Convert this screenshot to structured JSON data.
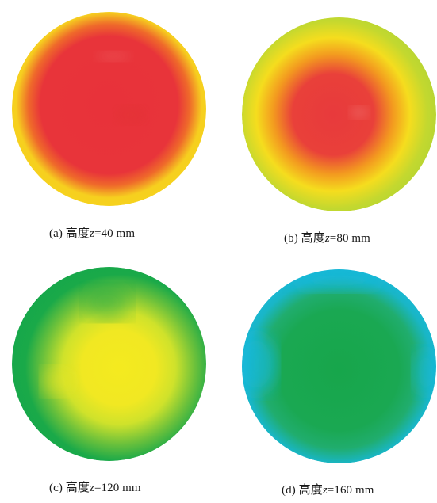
{
  "panels": [
    {
      "id": "a",
      "caption_prefix": "(a) 高度",
      "var": "z",
      "caption_suffix": "=40 mm",
      "colors": {
        "core": "#e8323a",
        "mid": "#ef6a2a",
        "edge": "#f6cf1f"
      }
    },
    {
      "id": "b",
      "caption_prefix": "(b) 高度",
      "var": "z",
      "caption_suffix": "=80 mm",
      "colors": {
        "core": "#e83a3c",
        "mid": "#f39a1f",
        "edge": "#c3d82f"
      }
    },
    {
      "id": "c",
      "caption_prefix": "(c) 高度",
      "var": "z",
      "caption_suffix": "=120 mm",
      "colors": {
        "core": "#f4ea1f",
        "mid": "#d6e429",
        "edge": "#16a84a"
      }
    },
    {
      "id": "d",
      "caption_prefix": "(d) 高度",
      "var": "z",
      "caption_suffix": "=160 mm",
      "colors": {
        "core": "#17a64b",
        "mid": "#20ad6e",
        "edge": "#19b9e0"
      }
    }
  ]
}
